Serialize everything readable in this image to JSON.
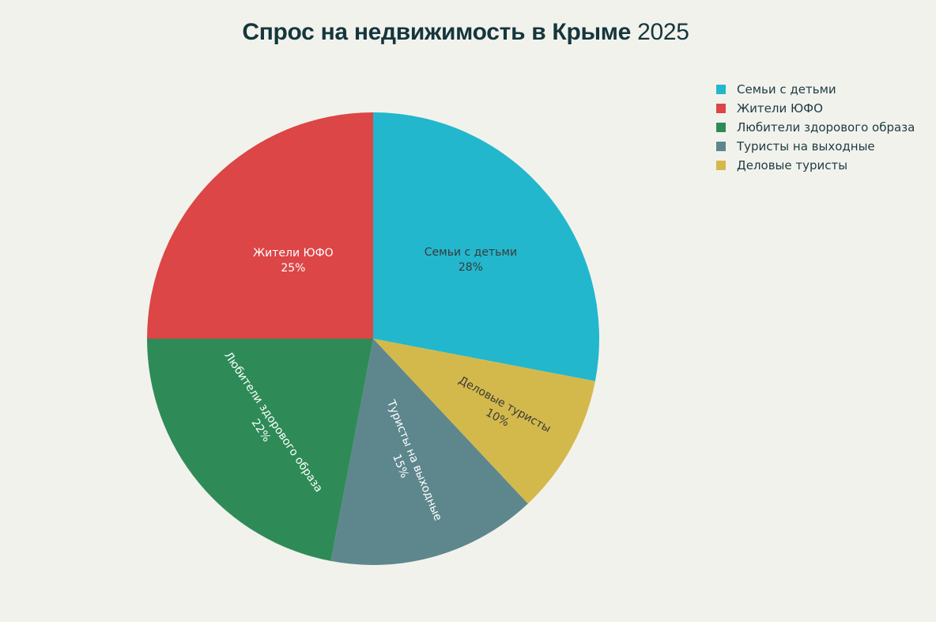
{
  "chart_data": {
    "type": "pie",
    "title_bold": "Спрос на недвижимость в Крыме",
    "title_regular": "2025",
    "slices": [
      {
        "label": "Семьи с детьми",
        "value": 28,
        "text": "28%",
        "color": "#22b7cd",
        "text_color": "#3a3a3a"
      },
      {
        "label": "Деловые туристы",
        "value": 10,
        "text": "10%",
        "color": "#d3b94c",
        "text_color": "#3a3a3a"
      },
      {
        "label": "Туристы на выходные",
        "value": 15,
        "text": "15%",
        "color": "#5d878d",
        "text_color": "#ffffff"
      },
      {
        "label": "Любители здорового образа",
        "value": 22,
        "text": "22%",
        "color": "#2e8b57",
        "text_color": "#ffffff"
      },
      {
        "label": "Жители ЮФО",
        "value": 25,
        "text": "25%",
        "color": "#dc4646",
        "text_color": "#ffffff"
      }
    ],
    "direction": "clockwise",
    "start": "top",
    "legend_order": [
      "Семьи с детьми",
      "Жители ЮФО",
      "Любители здорового образа",
      "Туристы на выходные",
      "Деловые туристы"
    ],
    "legend_position": "top-right"
  }
}
